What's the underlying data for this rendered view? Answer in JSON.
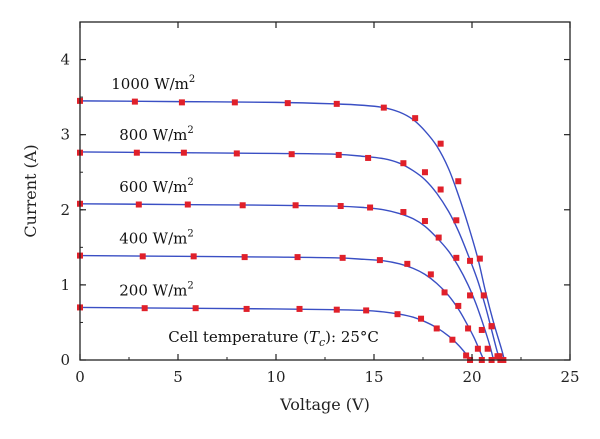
{
  "chart_data": {
    "type": "line",
    "xlabel": "Voltage (V)",
    "ylabel": "Current (A)",
    "xlim": [
      0,
      25
    ],
    "ylim": [
      0,
      4.5
    ],
    "x_ticks": [
      0,
      5,
      10,
      15,
      20,
      25
    ],
    "y_ticks": [
      0,
      1,
      2,
      3,
      4
    ],
    "grid": false,
    "annotation": {
      "prefix": "Cell temperature (",
      "symbol": "T",
      "subscript": "c",
      "suffix": "): 25°C"
    },
    "colors": {
      "line": "#3a4fc4",
      "marker": "#e0202a",
      "axis": "#222222"
    },
    "series": [
      {
        "irradiance": "1000",
        "unit": "W/m",
        "unit_exp": "2",
        "curve": [
          [
            0,
            3.45
          ],
          [
            5,
            3.44
          ],
          [
            10,
            3.43
          ],
          [
            13,
            3.41
          ],
          [
            14.5,
            3.39
          ],
          [
            15.5,
            3.36
          ],
          [
            16.3,
            3.3
          ],
          [
            17,
            3.2
          ],
          [
            17.6,
            3.05
          ],
          [
            18.2,
            2.85
          ],
          [
            18.8,
            2.55
          ],
          [
            19.3,
            2.2
          ],
          [
            19.8,
            1.8
          ],
          [
            20.3,
            1.35
          ],
          [
            20.7,
            0.9
          ],
          [
            21.1,
            0.5
          ],
          [
            21.5,
            0.15
          ],
          [
            21.65,
            0.0
          ]
        ],
        "points": [
          [
            0,
            3.45
          ],
          [
            2.8,
            3.44
          ],
          [
            5.2,
            3.43
          ],
          [
            7.9,
            3.43
          ],
          [
            10.6,
            3.42
          ],
          [
            13.1,
            3.41
          ],
          [
            15.5,
            3.36
          ],
          [
            17.1,
            3.22
          ],
          [
            18.4,
            2.88
          ],
          [
            19.3,
            2.38
          ],
          [
            20.4,
            1.35
          ],
          [
            21.0,
            0.45
          ],
          [
            21.4,
            0.05
          ],
          [
            21.6,
            0.0
          ]
        ]
      },
      {
        "irradiance": "800",
        "unit": "W/m",
        "unit_exp": "2",
        "curve": [
          [
            0,
            2.77
          ],
          [
            5,
            2.76
          ],
          [
            10,
            2.75
          ],
          [
            13,
            2.74
          ],
          [
            14.5,
            2.71
          ],
          [
            15.5,
            2.68
          ],
          [
            16.3,
            2.62
          ],
          [
            17,
            2.52
          ],
          [
            17.6,
            2.4
          ],
          [
            18.2,
            2.22
          ],
          [
            18.8,
            1.98
          ],
          [
            19.3,
            1.72
          ],
          [
            19.8,
            1.4
          ],
          [
            20.3,
            1.05
          ],
          [
            20.7,
            0.7
          ],
          [
            21.0,
            0.4
          ],
          [
            21.3,
            0.1
          ],
          [
            21.45,
            0.0
          ]
        ],
        "points": [
          [
            0,
            2.76
          ],
          [
            2.9,
            2.76
          ],
          [
            5.3,
            2.76
          ],
          [
            8.0,
            2.75
          ],
          [
            10.8,
            2.74
          ],
          [
            13.2,
            2.73
          ],
          [
            14.7,
            2.69
          ],
          [
            16.5,
            2.62
          ],
          [
            17.6,
            2.5
          ],
          [
            18.4,
            2.27
          ],
          [
            19.2,
            1.86
          ],
          [
            19.9,
            1.32
          ],
          [
            20.6,
            0.86
          ],
          [
            21.0,
            0.45
          ],
          [
            21.3,
            0.05
          ],
          [
            21.45,
            0.0
          ]
        ]
      },
      {
        "irradiance": "600",
        "unit": "W/m",
        "unit_exp": "2",
        "curve": [
          [
            0,
            2.08
          ],
          [
            5,
            2.07
          ],
          [
            10,
            2.06
          ],
          [
            13,
            2.05
          ],
          [
            14.5,
            2.03
          ],
          [
            15.5,
            2.0
          ],
          [
            16.3,
            1.95
          ],
          [
            17,
            1.88
          ],
          [
            17.6,
            1.78
          ],
          [
            18.2,
            1.63
          ],
          [
            18.8,
            1.45
          ],
          [
            19.3,
            1.25
          ],
          [
            19.8,
            1.0
          ],
          [
            20.2,
            0.75
          ],
          [
            20.6,
            0.45
          ],
          [
            20.9,
            0.2
          ],
          [
            21.1,
            0.0
          ]
        ],
        "points": [
          [
            0,
            2.08
          ],
          [
            3.0,
            2.07
          ],
          [
            5.5,
            2.07
          ],
          [
            8.3,
            2.06
          ],
          [
            11.0,
            2.06
          ],
          [
            13.3,
            2.05
          ],
          [
            14.8,
            2.03
          ],
          [
            16.5,
            1.97
          ],
          [
            17.6,
            1.85
          ],
          [
            18.3,
            1.63
          ],
          [
            19.2,
            1.36
          ],
          [
            19.9,
            0.86
          ],
          [
            20.5,
            0.4
          ],
          [
            20.8,
            0.15
          ],
          [
            21.0,
            0.0
          ]
        ]
      },
      {
        "irradiance": "400",
        "unit": "W/m",
        "unit_exp": "2",
        "curve": [
          [
            0,
            1.39
          ],
          [
            5,
            1.38
          ],
          [
            10,
            1.37
          ],
          [
            13,
            1.36
          ],
          [
            14.5,
            1.34
          ],
          [
            15.5,
            1.32
          ],
          [
            16.3,
            1.28
          ],
          [
            17,
            1.22
          ],
          [
            17.6,
            1.14
          ],
          [
            18.2,
            1.02
          ],
          [
            18.8,
            0.86
          ],
          [
            19.3,
            0.68
          ],
          [
            19.7,
            0.5
          ],
          [
            20.1,
            0.3
          ],
          [
            20.4,
            0.12
          ],
          [
            20.6,
            0.0
          ]
        ],
        "points": [
          [
            0,
            1.39
          ],
          [
            3.2,
            1.38
          ],
          [
            5.8,
            1.38
          ],
          [
            8.4,
            1.37
          ],
          [
            11.1,
            1.37
          ],
          [
            13.4,
            1.36
          ],
          [
            15.3,
            1.33
          ],
          [
            16.7,
            1.28
          ],
          [
            17.9,
            1.14
          ],
          [
            18.6,
            0.9
          ],
          [
            19.3,
            0.72
          ],
          [
            19.8,
            0.42
          ],
          [
            20.3,
            0.15
          ],
          [
            20.5,
            0.0
          ]
        ]
      },
      {
        "irradiance": "200",
        "unit": "W/m",
        "unit_exp": "2",
        "curve": [
          [
            0,
            0.7
          ],
          [
            5,
            0.69
          ],
          [
            10,
            0.68
          ],
          [
            13,
            0.67
          ],
          [
            14.5,
            0.66
          ],
          [
            15.5,
            0.64
          ],
          [
            16.3,
            0.61
          ],
          [
            17,
            0.57
          ],
          [
            17.6,
            0.51
          ],
          [
            18.2,
            0.43
          ],
          [
            18.8,
            0.32
          ],
          [
            19.3,
            0.2
          ],
          [
            19.7,
            0.08
          ],
          [
            19.95,
            0.0
          ]
        ],
        "points": [
          [
            0,
            0.7
          ],
          [
            3.3,
            0.69
          ],
          [
            5.9,
            0.69
          ],
          [
            8.5,
            0.68
          ],
          [
            11.2,
            0.68
          ],
          [
            13.1,
            0.67
          ],
          [
            14.6,
            0.66
          ],
          [
            16.2,
            0.61
          ],
          [
            17.4,
            0.55
          ],
          [
            18.2,
            0.42
          ],
          [
            19.0,
            0.27
          ],
          [
            19.7,
            0.06
          ],
          [
            19.9,
            0.0
          ]
        ]
      }
    ]
  }
}
